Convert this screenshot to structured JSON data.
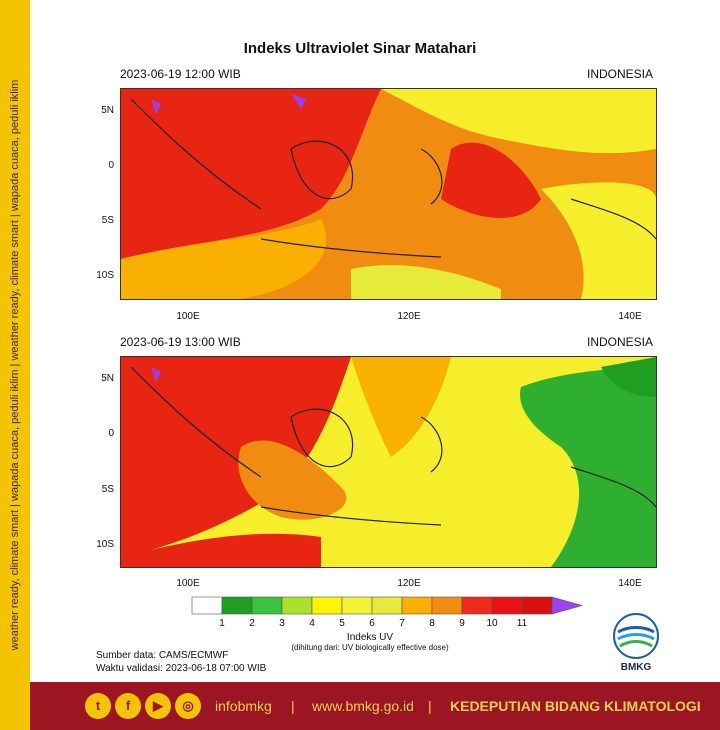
{
  "side_banner": "weather ready, climate smart  |  wapada cuaca, peduli iklim  |  weather ready, climate smart  |  wapada cuaca, peduli iklim",
  "title": "Indeks Ultraviolet Sinar Matahari",
  "panels": [
    {
      "datetime": "2023-06-19  12:00 WIB",
      "region": "INDONESIA"
    },
    {
      "datetime": "2023-06-19  13:00 WIB",
      "region": "INDONESIA"
    }
  ],
  "lat_labels": [
    "5N",
    "0",
    "5S",
    "10S"
  ],
  "lon_labels": [
    "100E",
    "120E",
    "140E"
  ],
  "legend": {
    "title": "Indeks UV",
    "subtitle": "(dihitung dari: UV biologically effective dose)",
    "ticks": [
      "1",
      "2",
      "3",
      "4",
      "5",
      "6",
      "7",
      "8",
      "9",
      "10",
      "11"
    ],
    "colors": [
      "#ffffff",
      "#1f9e1f",
      "#3bc43b",
      "#a8e22a",
      "#fdf500",
      "#f1f233",
      "#e6ea38",
      "#f9b000",
      "#f08c10",
      "#f02a1a",
      "#e81212",
      "#d81010",
      "#a040f0"
    ]
  },
  "source": "Sumber data: CAMS/ECMWF",
  "validity": "Waktu validasi: 2023-06-18 07:00 WIB",
  "logo_text": "BMKG",
  "footer": {
    "icons": [
      "twitter-icon",
      "facebook-icon",
      "youtube-icon",
      "instagram-icon"
    ],
    "handle": "infobmkg",
    "separator": "|",
    "website": "www.bmkg.go.id",
    "department": "KEDEPUTIAN BIDANG KLIMATOLOGI"
  }
}
